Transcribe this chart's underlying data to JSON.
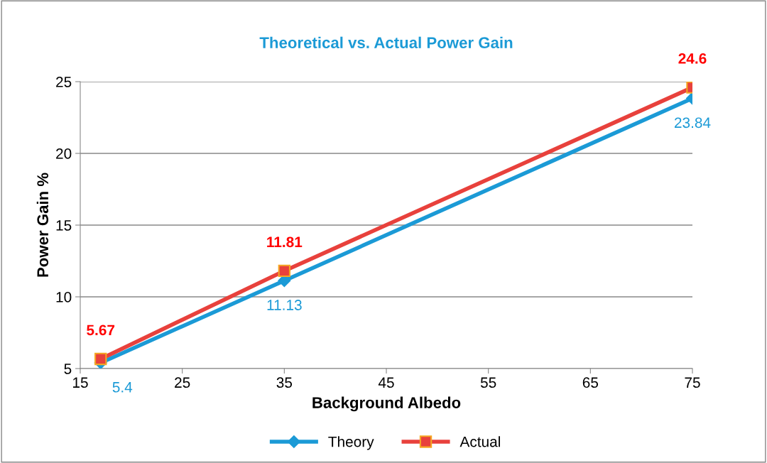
{
  "chart_data": {
    "type": "line",
    "title": "Theoretical vs. Actual Power Gain",
    "xlabel": "Background Albedo",
    "ylabel": "Power Gain %",
    "x": [
      17,
      35,
      75
    ],
    "series": [
      {
        "name": "Theory",
        "color": "#1b9ad6",
        "values": [
          5.4,
          11.13,
          23.84
        ],
        "marker": "diamond"
      },
      {
        "name": "Actual",
        "color": "#e8413c",
        "values": [
          5.67,
          11.81,
          24.6
        ],
        "marker": "square"
      }
    ],
    "xlim": [
      15,
      75
    ],
    "xticks": [
      15,
      25,
      35,
      45,
      55,
      65,
      75
    ],
    "ylim": [
      5,
      25
    ],
    "yticks": [
      5,
      10,
      15,
      20,
      25
    ],
    "grid": "y",
    "legend": "bottom",
    "data_labels": true,
    "line_style": "solid"
  }
}
